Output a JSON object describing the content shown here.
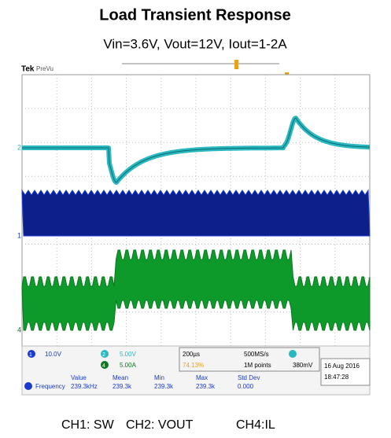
{
  "header": {
    "title": "Load Transient Response",
    "subtitle": "Vin=3.6V, Vout=12V, Iout=1-2A"
  },
  "scope": {
    "brand": "Tek",
    "mode": "PreVu",
    "markers": [
      "2",
      "1",
      "4"
    ],
    "channels": [
      {
        "id": "1",
        "scale": "10.0V"
      },
      {
        "id": "2",
        "scale": "5.00V"
      },
      {
        "id": "4",
        "scale": "5.00A"
      }
    ],
    "timebase": "200µs",
    "sample_rate": "500MS/s",
    "record": "1M points",
    "trigger_pos": "74.13%",
    "trigger_level": "380mV",
    "date": "16 Aug 2016",
    "time": "18:47:28",
    "measurements": {
      "columns": [
        "Value",
        "Mean",
        "Min",
        "Max",
        "Std Dev"
      ],
      "rows": [
        {
          "name": "Frequency",
          "cells": [
            "239.3kHz",
            "239.3k",
            "239.3k",
            "239.3k",
            "0.000"
          ]
        }
      ]
    }
  },
  "caption": [
    "CH1: SW",
    "CH2: VOUT",
    "CH4:IL"
  ]
}
